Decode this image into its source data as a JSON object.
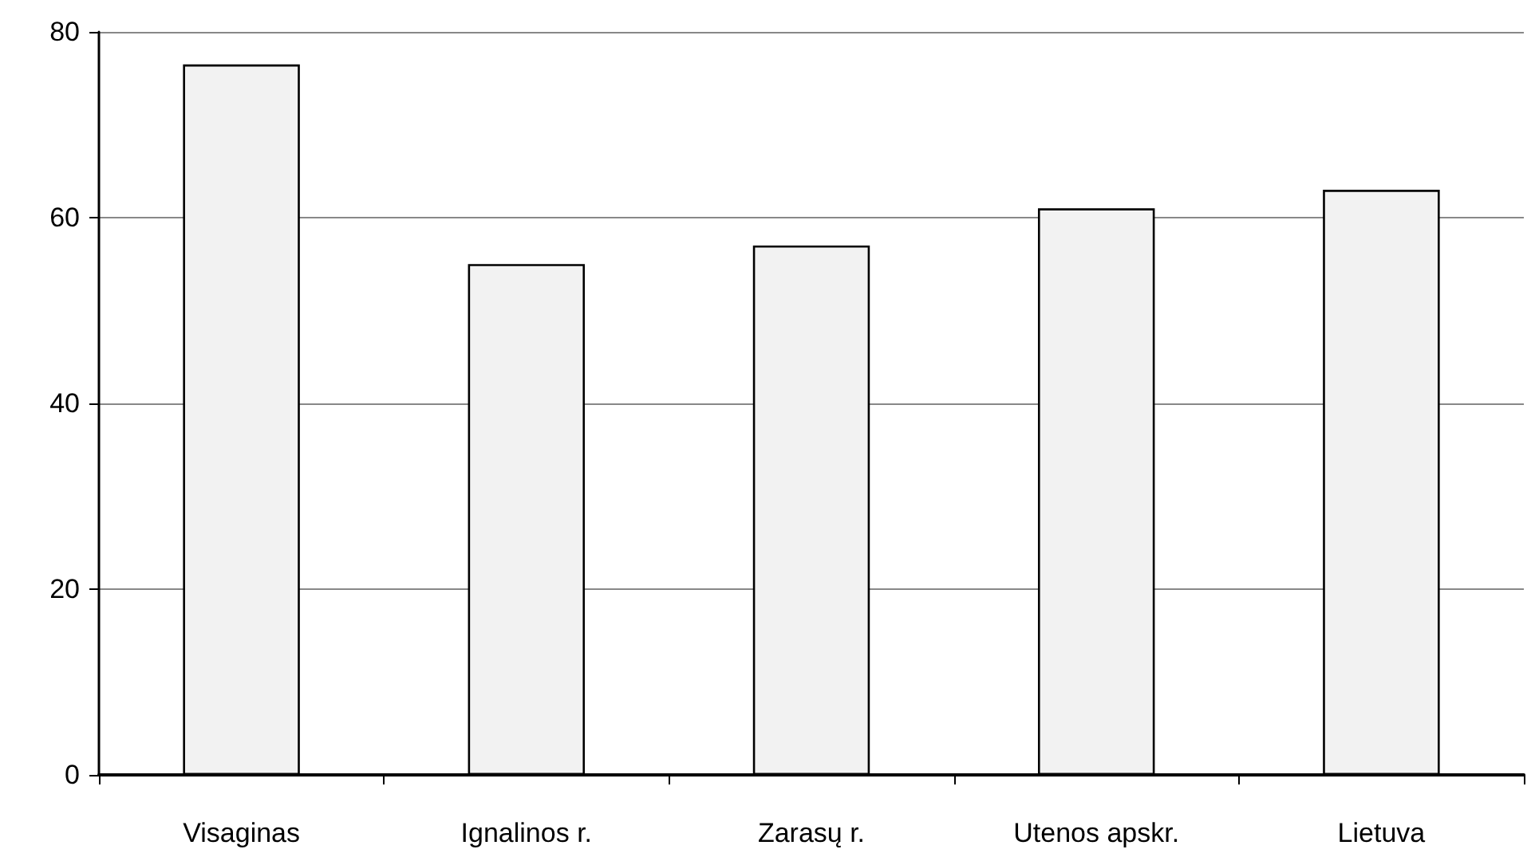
{
  "chart_data": {
    "type": "bar",
    "categories": [
      "Visaginas",
      "Ignalinos r.",
      "Zarasų r.",
      "Utenos apskr.",
      "Lietuva"
    ],
    "values": [
      76.5,
      55,
      57,
      61,
      63
    ],
    "color": "#f2f2f2",
    "ylim": [
      0,
      80
    ],
    "yticks": [
      0,
      20,
      40,
      60,
      80
    ],
    "grid": "y"
  }
}
